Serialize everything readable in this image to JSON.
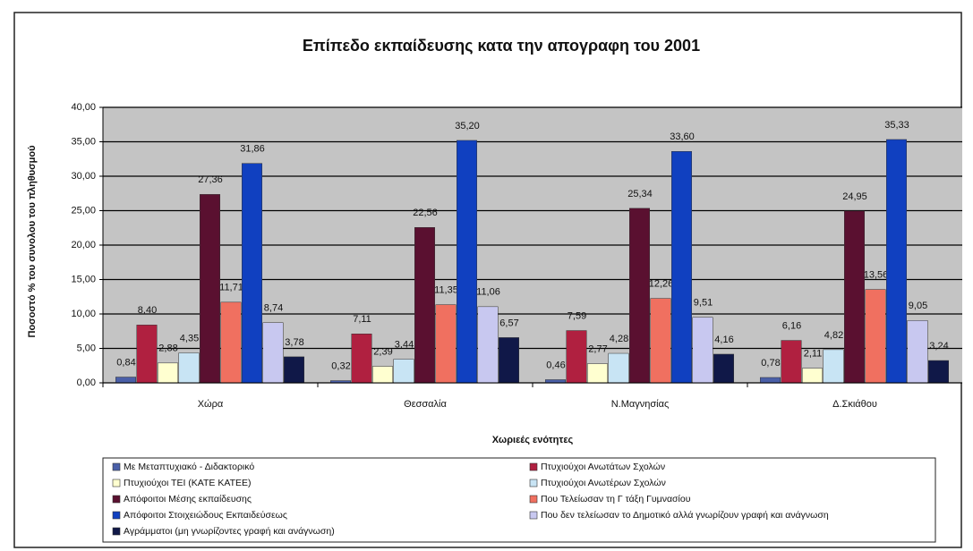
{
  "chart_data": {
    "type": "bar",
    "title": "Επίπεδο εκπαίδευσης κατα την απογραφη του 2001",
    "x_label": "Χωριεές ενότητες",
    "y_label": "Ποσοστό % του συνολου του πληθυσμού",
    "categories": [
      "Χώρα",
      "Θεσσαλία",
      "Ν.Μαγνησίας",
      "Δ.Σκιάθου"
    ],
    "ylim": [
      0,
      40
    ],
    "yticks": [
      {
        "value": 0,
        "label": "0,00"
      },
      {
        "value": 5,
        "label": "5,00"
      },
      {
        "value": 10,
        "label": "10,00"
      },
      {
        "value": 15,
        "label": "15,00"
      },
      {
        "value": 20,
        "label": "20,00"
      },
      {
        "value": 25,
        "label": "25,00"
      },
      {
        "value": 30,
        "label": "30,00"
      },
      {
        "value": 35,
        "label": "35,00"
      },
      {
        "value": 40,
        "label": "40,00"
      }
    ],
    "grid": true,
    "series": [
      {
        "name": "Με Μεταπτυχιακό - Διδακτορικό",
        "color": "#4a5fa8",
        "values": [
          0.84,
          0.32,
          0.46,
          0.78
        ],
        "value_labels": [
          "0,84",
          "0,32",
          "0,46",
          "0,78"
        ]
      },
      {
        "name": "Πτυχιούχοι Ανωτάτων Σχολών",
        "color": "#b02040",
        "values": [
          8.4,
          7.11,
          7.59,
          6.16
        ],
        "value_labels": [
          "8,40",
          "7,11",
          "7,59",
          "6,16"
        ]
      },
      {
        "name": "Πτυχιούχοι ΤΕΙ (ΚΑΤΕ ΚΑΤΕΕ)",
        "color": "#ffffd0",
        "values": [
          2.88,
          2.39,
          2.77,
          2.11
        ],
        "value_labels": [
          "2,88",
          "2,39",
          "2,77",
          "2,11"
        ]
      },
      {
        "name": "Πτυχιούχοι Ανωτέρων Σχολών",
        "color": "#c8e4f4",
        "values": [
          4.35,
          3.44,
          4.28,
          4.82
        ],
        "value_labels": [
          "4,35",
          "3,44",
          "4,28",
          "4,82"
        ]
      },
      {
        "name": "Απόφοιτοι Μέσης εκπαίδευσης",
        "color": "#5a1030",
        "values": [
          27.36,
          22.56,
          25.34,
          24.95
        ],
        "value_labels": [
          "27,36",
          "22,56",
          "25,34",
          "24,95"
        ]
      },
      {
        "name": "Που Τελείωσαν τη Γ τάξη Γυμνασίου",
        "color": "#f07060",
        "values": [
          11.71,
          11.35,
          12.26,
          13.56
        ],
        "value_labels": [
          "11,71",
          "11,35",
          "12,26",
          "13,56"
        ]
      },
      {
        "name": "Απόφοιτοι Στοιχειώδους Εκπαιδεύσεως",
        "color": "#1040c0",
        "values": [
          31.86,
          35.2,
          33.6,
          35.33
        ],
        "value_labels": [
          "31,86",
          "35,20",
          "33,60",
          "35,33"
        ]
      },
      {
        "name": "Που δεν τελείωσαν το Δημοτικό αλλά γνωρίζουν γραφή και ανάγνωση",
        "color": "#c8c8f0",
        "values": [
          8.74,
          11.06,
          9.51,
          9.05
        ],
        "value_labels": [
          "8,74",
          "11,06",
          "9,51",
          "9,05"
        ]
      },
      {
        "name": "Αγράμματοι (μη γνωρίζοντες γραφή και ανάγνωση)",
        "color": "#101848",
        "values": [
          3.78,
          6.57,
          4.16,
          3.24
        ],
        "value_labels": [
          "3,78",
          "6,57",
          "4,16",
          "3,24"
        ]
      }
    ]
  }
}
